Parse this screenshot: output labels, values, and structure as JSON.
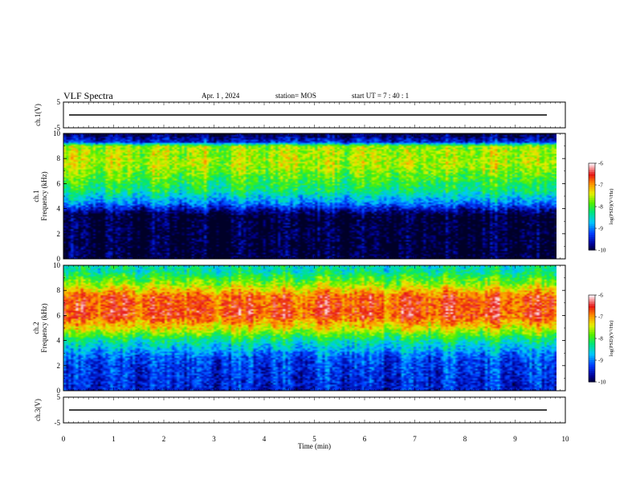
{
  "header": {
    "title": "VLF Spectra",
    "date": "Apr. 1 , 2024",
    "station": "station= MOS",
    "start": "start UT = 7 : 40 : 1"
  },
  "chart_data": [
    {
      "type": "line",
      "ylabel": "ch.1(V)",
      "ylim": [
        -5,
        5
      ],
      "yticks": [
        "5",
        "-5"
      ],
      "x": [
        0,
        10
      ],
      "series": [
        {
          "values": [
            0,
            0
          ]
        }
      ]
    },
    {
      "type": "heatmap",
      "ylabel": "ch.1\nFrequency (kHz)",
      "ylim": [
        0,
        10
      ],
      "yticks": [
        "0",
        "2",
        "4",
        "6",
        "8",
        "10"
      ],
      "xlim": [
        0,
        9.8
      ],
      "intensity_profile": [
        {
          "freq_khz": 0,
          "log_psd": -10
        },
        {
          "freq_khz": 3.5,
          "log_psd": -10
        },
        {
          "freq_khz": 4.5,
          "log_psd": -8.9
        },
        {
          "freq_khz": 5.5,
          "log_psd": -8.2
        },
        {
          "freq_khz": 7.5,
          "log_psd": -7.5
        },
        {
          "freq_khz": 9.0,
          "log_psd": -7.6
        },
        {
          "freq_khz": 9.3,
          "log_psd": -9.3
        },
        {
          "freq_khz": 10,
          "log_psd": -10
        }
      ],
      "colorbar": {
        "label": "log(PSD)(V²/Hz)",
        "range": [
          -10,
          -6
        ],
        "ticks": [
          "-6",
          "-7",
          "-8",
          "-9",
          "-10"
        ]
      }
    },
    {
      "type": "heatmap",
      "ylabel": "ch.2\nFrequency (kHz)",
      "ylim": [
        0,
        10
      ],
      "yticks": [
        "0",
        "2",
        "4",
        "6",
        "8",
        "10"
      ],
      "xlim": [
        0,
        9.8
      ],
      "intensity_profile": [
        {
          "freq_khz": 0,
          "log_psd": -9.4
        },
        {
          "freq_khz": 2.5,
          "log_psd": -9.2
        },
        {
          "freq_khz": 4.0,
          "log_psd": -8.3
        },
        {
          "freq_khz": 5.0,
          "log_psd": -7.3
        },
        {
          "freq_khz": 6.0,
          "log_psd": -6.6
        },
        {
          "freq_khz": 7.5,
          "log_psd": -6.7
        },
        {
          "freq_khz": 8.5,
          "log_psd": -7.6
        },
        {
          "freq_khz": 9.5,
          "log_psd": -8.3
        },
        {
          "freq_khz": 10,
          "log_psd": -8.4
        }
      ],
      "colorbar": {
        "label": "log(PSD)(V²/Hz)",
        "range": [
          -10,
          -6
        ],
        "ticks": [
          "-6",
          "-7",
          "-8",
          "-9",
          "-10"
        ]
      }
    },
    {
      "type": "line",
      "ylabel": "ch.3(V)",
      "ylim": [
        -5,
        5
      ],
      "yticks": [
        "5",
        "-5"
      ],
      "x": [
        0,
        10
      ],
      "series": [
        {
          "values": [
            0,
            0
          ]
        }
      ]
    }
  ],
  "xaxis": {
    "label": "Time (min)",
    "range": [
      0,
      10
    ],
    "ticks": [
      "0",
      "1",
      "2",
      "3",
      "4",
      "5",
      "6",
      "7",
      "8",
      "9",
      "10"
    ]
  }
}
